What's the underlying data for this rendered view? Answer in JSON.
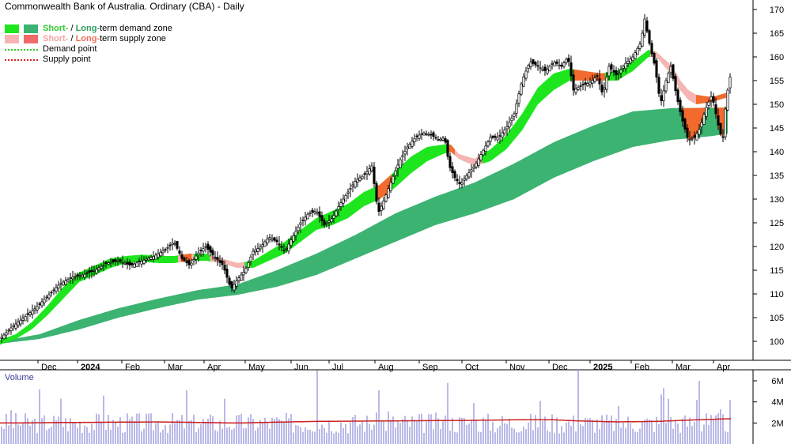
{
  "chart_data": [
    {
      "type": "line",
      "title": "Commonwealth Bank of Australia. Ordinary (CBA) - Daily",
      "price_axis": {
        "ticks": [
          100,
          105,
          110,
          115,
          120,
          125,
          130,
          135,
          140,
          145,
          150,
          155,
          160,
          165,
          170
        ],
        "range": [
          96,
          172
        ]
      },
      "x_tick_labels": [
        "Dec",
        "2024",
        "Feb",
        "Mar",
        "Apr",
        "May",
        "Jun",
        "Jul",
        "Aug",
        "Sep",
        "Oct",
        "Nov",
        "Dec",
        "2025",
        "Feb",
        "Mar",
        "Apr"
      ],
      "x_tick_bold": [
        "2024",
        "2025"
      ],
      "legend": [
        {
          "text_a": "Short-",
          "text_b": " / ",
          "text_c": "Long-",
          "text_d": "term demand zone"
        },
        {
          "text_a": "Short-",
          "text_b": " / ",
          "text_c": "Long-",
          "text_d": "term supply zone"
        },
        {
          "text": "Demand point"
        },
        {
          "text": "Supply point"
        }
      ],
      "colors": {
        "short_demand": "#1ee61e",
        "long_demand": "#3cb371",
        "short_supply": "#f8b4b4",
        "long_supply": "#f26a2e",
        "demand_point": "#22cc22",
        "supply_point": "#dd2222",
        "candle": "#000000",
        "axis": "#000000"
      },
      "short_zone": {
        "low": [
          [
            0,
            99.3
          ],
          [
            20,
            100.5
          ],
          [
            40,
            102.5
          ],
          [
            60,
            105.5
          ],
          [
            80,
            109
          ],
          [
            100,
            112.5
          ],
          [
            120,
            114
          ],
          [
            140,
            115.5
          ],
          [
            160,
            116.5
          ],
          [
            180,
            116.8
          ],
          [
            200,
            116.5
          ],
          [
            220,
            116.5
          ],
          [
            240,
            117
          ],
          [
            260,
            117
          ],
          [
            280,
            116.5
          ],
          [
            300,
            115.5
          ],
          [
            320,
            115.5
          ],
          [
            340,
            117
          ],
          [
            360,
            118.5
          ],
          [
            380,
            121
          ],
          [
            400,
            123.5
          ],
          [
            420,
            124.5
          ],
          [
            440,
            126
          ],
          [
            460,
            128.5
          ],
          [
            480,
            130
          ],
          [
            500,
            132.5
          ],
          [
            520,
            135.5
          ],
          [
            540,
            138
          ],
          [
            560,
            139.5
          ],
          [
            570,
            140
          ],
          [
            580,
            138.5
          ],
          [
            600,
            137
          ],
          [
            620,
            138
          ],
          [
            640,
            140.5
          ],
          [
            660,
            144.5
          ],
          [
            680,
            150
          ],
          [
            700,
            153
          ],
          [
            720,
            155
          ],
          [
            740,
            155
          ],
          [
            760,
            155
          ],
          [
            780,
            155
          ],
          [
            800,
            157
          ],
          [
            820,
            160
          ],
          [
            830,
            160
          ],
          [
            840,
            158
          ],
          [
            850,
            156
          ],
          [
            860,
            153
          ],
          [
            870,
            151
          ],
          [
            880,
            150
          ],
          [
            900,
            150.5
          ],
          [
            920,
            151.5
          ]
        ],
        "high": [
          [
            0,
            100.3
          ],
          [
            20,
            101.5
          ],
          [
            40,
            104
          ],
          [
            60,
            107.5
          ],
          [
            80,
            111.5
          ],
          [
            100,
            114.5
          ],
          [
            120,
            116
          ],
          [
            140,
            117.5
          ],
          [
            160,
            118
          ],
          [
            180,
            118.3
          ],
          [
            200,
            118
          ],
          [
            220,
            118
          ],
          [
            240,
            118.5
          ],
          [
            260,
            118.5
          ],
          [
            280,
            117.5
          ],
          [
            300,
            116.5
          ],
          [
            320,
            117
          ],
          [
            340,
            119
          ],
          [
            360,
            121
          ],
          [
            380,
            123.5
          ],
          [
            400,
            126
          ],
          [
            420,
            127.5
          ],
          [
            440,
            129
          ],
          [
            460,
            131.5
          ],
          [
            480,
            133
          ],
          [
            500,
            136
          ],
          [
            520,
            139
          ],
          [
            540,
            141
          ],
          [
            560,
            141.5
          ],
          [
            570,
            141.5
          ],
          [
            580,
            139.5
          ],
          [
            600,
            138.5
          ],
          [
            620,
            140.5
          ],
          [
            640,
            143.5
          ],
          [
            660,
            148
          ],
          [
            680,
            153.5
          ],
          [
            700,
            156.5
          ],
          [
            720,
            157.5
          ],
          [
            740,
            157
          ],
          [
            760,
            156.5
          ],
          [
            780,
            157
          ],
          [
            800,
            159
          ],
          [
            820,
            161.5
          ],
          [
            830,
            161
          ],
          [
            840,
            159.5
          ],
          [
            850,
            158
          ],
          [
            860,
            155
          ],
          [
            870,
            153
          ],
          [
            880,
            152
          ],
          [
            900,
            151.5
          ],
          [
            920,
            152.5
          ]
        ]
      },
      "short_supply_ranges": [
        [
          225,
          245
        ],
        [
          265,
          310
        ],
        [
          475,
          495
        ],
        [
          565,
          610
        ],
        [
          725,
          765
        ],
        [
          822,
          920
        ]
      ],
      "short_supply_dark_ranges": [
        [
          228,
          243
        ],
        [
          475,
          495
        ],
        [
          565,
          575
        ],
        [
          725,
          765
        ],
        [
          880,
          918
        ]
      ],
      "long_zone": {
        "low": [
          [
            0,
            99.5
          ],
          [
            50,
            100.5
          ],
          [
            100,
            102.5
          ],
          [
            150,
            105
          ],
          [
            200,
            107
          ],
          [
            250,
            108.8
          ],
          [
            300,
            109.8
          ],
          [
            350,
            111.5
          ],
          [
            400,
            114
          ],
          [
            450,
            117.5
          ],
          [
            500,
            121
          ],
          [
            550,
            124.5
          ],
          [
            600,
            127
          ],
          [
            650,
            130
          ],
          [
            700,
            134.5
          ],
          [
            750,
            138
          ],
          [
            800,
            141
          ],
          [
            850,
            142.5
          ],
          [
            870,
            142.8
          ],
          [
            900,
            143.3
          ],
          [
            920,
            143.8
          ]
        ],
        "high": [
          [
            0,
            100
          ],
          [
            50,
            101.5
          ],
          [
            100,
            104.5
          ],
          [
            150,
            107
          ],
          [
            200,
            109
          ],
          [
            250,
            110.8
          ],
          [
            300,
            112
          ],
          [
            350,
            115
          ],
          [
            400,
            118.5
          ],
          [
            450,
            122.5
          ],
          [
            500,
            127
          ],
          [
            550,
            130.5
          ],
          [
            600,
            133.5
          ],
          [
            650,
            137.5
          ],
          [
            700,
            142
          ],
          [
            750,
            145.5
          ],
          [
            800,
            148.5
          ],
          [
            850,
            149.2
          ],
          [
            870,
            149.2
          ],
          [
            900,
            149.3
          ],
          [
            920,
            149.3
          ]
        ]
      },
      "long_supply_range": [
        [
          862,
          918
        ]
      ],
      "price_path": [
        [
          0,
          100.5
        ],
        [
          15,
          103
        ],
        [
          30,
          105
        ],
        [
          45,
          107
        ],
        [
          60,
          109.5
        ],
        [
          75,
          112
        ],
        [
          90,
          113.5
        ],
        [
          105,
          114
        ],
        [
          120,
          115
        ],
        [
          135,
          116.5
        ],
        [
          150,
          117
        ],
        [
          165,
          116
        ],
        [
          180,
          117
        ],
        [
          195,
          118
        ],
        [
          210,
          119.5
        ],
        [
          220,
          121
        ],
        [
          230,
          117.5
        ],
        [
          240,
          116
        ],
        [
          250,
          118.5
        ],
        [
          260,
          120
        ],
        [
          270,
          118
        ],
        [
          282,
          116
        ],
        [
          292,
          111
        ],
        [
          300,
          113
        ],
        [
          310,
          115
        ],
        [
          320,
          119
        ],
        [
          330,
          120
        ],
        [
          340,
          122
        ],
        [
          350,
          121
        ],
        [
          360,
          119
        ],
        [
          370,
          122
        ],
        [
          380,
          125
        ],
        [
          390,
          127
        ],
        [
          400,
          127.5
        ],
        [
          410,
          124.5
        ],
        [
          420,
          126
        ],
        [
          430,
          129
        ],
        [
          440,
          131.5
        ],
        [
          450,
          134
        ],
        [
          460,
          135
        ],
        [
          470,
          137
        ],
        [
          478,
          127
        ],
        [
          486,
          130
        ],
        [
          495,
          134
        ],
        [
          505,
          138
        ],
        [
          515,
          141
        ],
        [
          525,
          143
        ],
        [
          535,
          144
        ],
        [
          545,
          143.5
        ],
        [
          555,
          142.5
        ],
        [
          562,
          143
        ],
        [
          568,
          137
        ],
        [
          575,
          134.5
        ],
        [
          582,
          133
        ],
        [
          590,
          135
        ],
        [
          600,
          137
        ],
        [
          610,
          140
        ],
        [
          620,
          143
        ],
        [
          630,
          143
        ],
        [
          640,
          145
        ],
        [
          650,
          148
        ],
        [
          660,
          155
        ],
        [
          670,
          159
        ],
        [
          680,
          158
        ],
        [
          690,
          157
        ],
        [
          700,
          159
        ],
        [
          710,
          158
        ],
        [
          718,
          160
        ],
        [
          725,
          153
        ],
        [
          735,
          154
        ],
        [
          745,
          154.5
        ],
        [
          755,
          156
        ],
        [
          762,
          152
        ],
        [
          770,
          158
        ],
        [
          780,
          156
        ],
        [
          790,
          158.5
        ],
        [
          800,
          160
        ],
        [
          810,
          163
        ],
        [
          815,
          168
        ],
        [
          822,
          162
        ],
        [
          828,
          158
        ],
        [
          835,
          150
        ],
        [
          842,
          155
        ],
        [
          848,
          158
        ],
        [
          855,
          152
        ],
        [
          862,
          147
        ],
        [
          870,
          142.5
        ],
        [
          878,
          143
        ],
        [
          885,
          145
        ],
        [
          892,
          149
        ],
        [
          900,
          152
        ],
        [
          905,
          148
        ],
        [
          910,
          144
        ],
        [
          914,
          143
        ],
        [
          918,
          151
        ],
        [
          922,
          155
        ],
        [
          926,
          158
        ]
      ],
      "volume_axis": {
        "ticks": [
          2,
          4,
          6
        ],
        "tick_labels": [
          "2M",
          "4M",
          "6M"
        ],
        "range": [
          0,
          7.2
        ]
      },
      "volume_title": "Volume",
      "volume_spikes": [
        [
          15,
          3.2
        ],
        [
          50,
          5.2
        ],
        [
          78,
          4.3
        ],
        [
          132,
          4.6
        ],
        [
          235,
          5.1
        ],
        [
          245,
          2.8
        ],
        [
          285,
          4.3
        ],
        [
          400,
          7
        ],
        [
          478,
          5.1
        ],
        [
          490,
          3.1
        ],
        [
          565,
          5.8
        ],
        [
          600,
          3.9
        ],
        [
          683,
          4.1
        ],
        [
          730,
          7.1
        ],
        [
          782,
          3.6
        ],
        [
          835,
          4.7
        ],
        [
          838,
          5.3
        ],
        [
          845,
          4.3
        ],
        [
          880,
          4.2
        ],
        [
          885,
          6
        ],
        [
          893,
          2.9
        ],
        [
          912,
          3.3
        ],
        [
          922,
          4.2
        ]
      ],
      "volume_ma": [
        [
          0,
          2.0
        ],
        [
          100,
          2.05
        ],
        [
          200,
          2.1
        ],
        [
          300,
          2.0
        ],
        [
          400,
          2.15
        ],
        [
          500,
          2.2
        ],
        [
          600,
          2.25
        ],
        [
          650,
          2.3
        ],
        [
          700,
          2.3
        ],
        [
          730,
          2.2
        ],
        [
          780,
          2.1
        ],
        [
          830,
          2.15
        ],
        [
          880,
          2.3
        ],
        [
          920,
          2.4
        ]
      ]
    }
  ]
}
